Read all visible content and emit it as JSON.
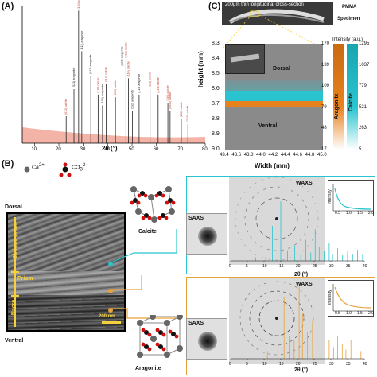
{
  "panelA": {
    "label": "(A)",
    "xlabel": "2θ (°)",
    "xticks": [
      "10",
      "20",
      "30",
      "40",
      "50",
      "60",
      "70",
      "80"
    ],
    "peaks": [
      {
        "pos": 28.1,
        "h": 0.98,
        "lab": "(104) calcite",
        "c": "#c0392b"
      },
      {
        "pos": 29.4,
        "h": 0.68,
        "lab": "(111) aragonite",
        "c": "#222"
      },
      {
        "pos": 26.2,
        "h": 0.4,
        "lab": "(021) aragonite",
        "c": "#222"
      },
      {
        "pos": 33.1,
        "h": 0.5,
        "lab": "(012) aragonite",
        "c": "#222"
      },
      {
        "pos": 23.0,
        "h": 0.2,
        "lab": "(012) calcite",
        "c": "#c0392b"
      },
      {
        "pos": 36.1,
        "h": 0.36,
        "lab": "(110) calcite",
        "c": "#c0392b"
      },
      {
        "pos": 37.9,
        "h": 0.28,
        "lab": "(102) aragonite",
        "c": "#222"
      },
      {
        "pos": 39.4,
        "h": 0.44,
        "lab": "(113) calcite",
        "c": "#c0392b"
      },
      {
        "pos": 43.2,
        "h": 0.34,
        "lab": "(202) calcite",
        "c": "#c0392b"
      },
      {
        "pos": 45.9,
        "h": 0.56,
        "lab": "(221) aragonite",
        "c": "#222"
      },
      {
        "pos": 47.5,
        "h": 0.62,
        "lab": "(018) calcite",
        "c": "#c0392b"
      },
      {
        "pos": 48.5,
        "h": 0.48,
        "lab": "(116) calcite",
        "c": "#c0392b"
      },
      {
        "pos": 50.2,
        "h": 0.24,
        "lab": "(132) aragonite",
        "c": "#222"
      },
      {
        "pos": 52.9,
        "h": 0.36,
        "lab": "(113) aragonite",
        "c": "#222"
      },
      {
        "pos": 57.4,
        "h": 0.4,
        "lab": "(122) calcite",
        "c": "#c0392b"
      },
      {
        "pos": 60.7,
        "h": 0.36,
        "lab": "(214) calcite",
        "c": "#c0392b"
      },
      {
        "pos": 64.7,
        "h": 0.3,
        "lab": "(300) calcite",
        "c": "#c0392b"
      },
      {
        "pos": 65.6,
        "h": 0.24,
        "lab": "(0012) calcite",
        "c": "#c0392b"
      },
      {
        "pos": 70.2,
        "h": 0.18,
        "lab": "(208) calcite",
        "c": "#c0392b"
      },
      {
        "pos": 72.9,
        "h": 0.14,
        "lab": "(1010) calcite",
        "c": "#c0392b"
      }
    ]
  },
  "panelC": {
    "label": "(C)",
    "title": "200μm thin longitudinal cross-section",
    "pmma": "PMMA",
    "specimen": "Specimen",
    "ylabel": "height (mm)",
    "xlabel": "Width (mm)",
    "yticks": [
      "8.3",
      "8.4",
      "8.5",
      "8.6",
      "8.7",
      "8.8",
      "8.9",
      "9.0"
    ],
    "xticks": [
      "43.4",
      "43.6",
      "43.8",
      "44.0",
      "44.2",
      "44.4",
      "44.6",
      "44.8",
      "45.0"
    ],
    "dorsal": "Dorsal",
    "ventral": "Ventral",
    "intensity_label": "Intensity (a.u.)",
    "aragonite_label": "Aragonite",
    "calcite_label": "Calcite",
    "aragonite_ticks": [
      "170",
      "139",
      "109",
      "79",
      "48",
      "17"
    ],
    "calcite_ticks": [
      "1295",
      "1037",
      "779",
      "521",
      "263",
      "5"
    ],
    "colors": {
      "aragonite": "#e8821e",
      "calcite": "#29c4cf",
      "background": "#8a8a8a"
    }
  },
  "panelB": {
    "label": "(B)",
    "ca": "Ca",
    "ca_sup": "2+",
    "co": "CO",
    "co_sub": "3",
    "co_sup": "2−",
    "dorsal": "Dorsal",
    "ventral": "Ventral",
    "oblique": "Oblique prism",
    "prism": "Prism",
    "nacre": "Nacre",
    "scalebar": "200 nm",
    "calcite": "Calcite",
    "aragonite": "Aragonite",
    "waxs": "WAXS",
    "saxs": "SAXS",
    "xlabel": "2θ (°)",
    "xticks": [
      "0",
      "5",
      "10",
      "15",
      "20",
      "25",
      "30",
      "35",
      "40"
    ],
    "inset_ylabel": "Intensity",
    "inset_xticks": [
      "0.5",
      "1.0",
      "1.5",
      "2.0"
    ],
    "calcite_color": "#29c4cf",
    "aragonite_color": "#e8a23a"
  }
}
